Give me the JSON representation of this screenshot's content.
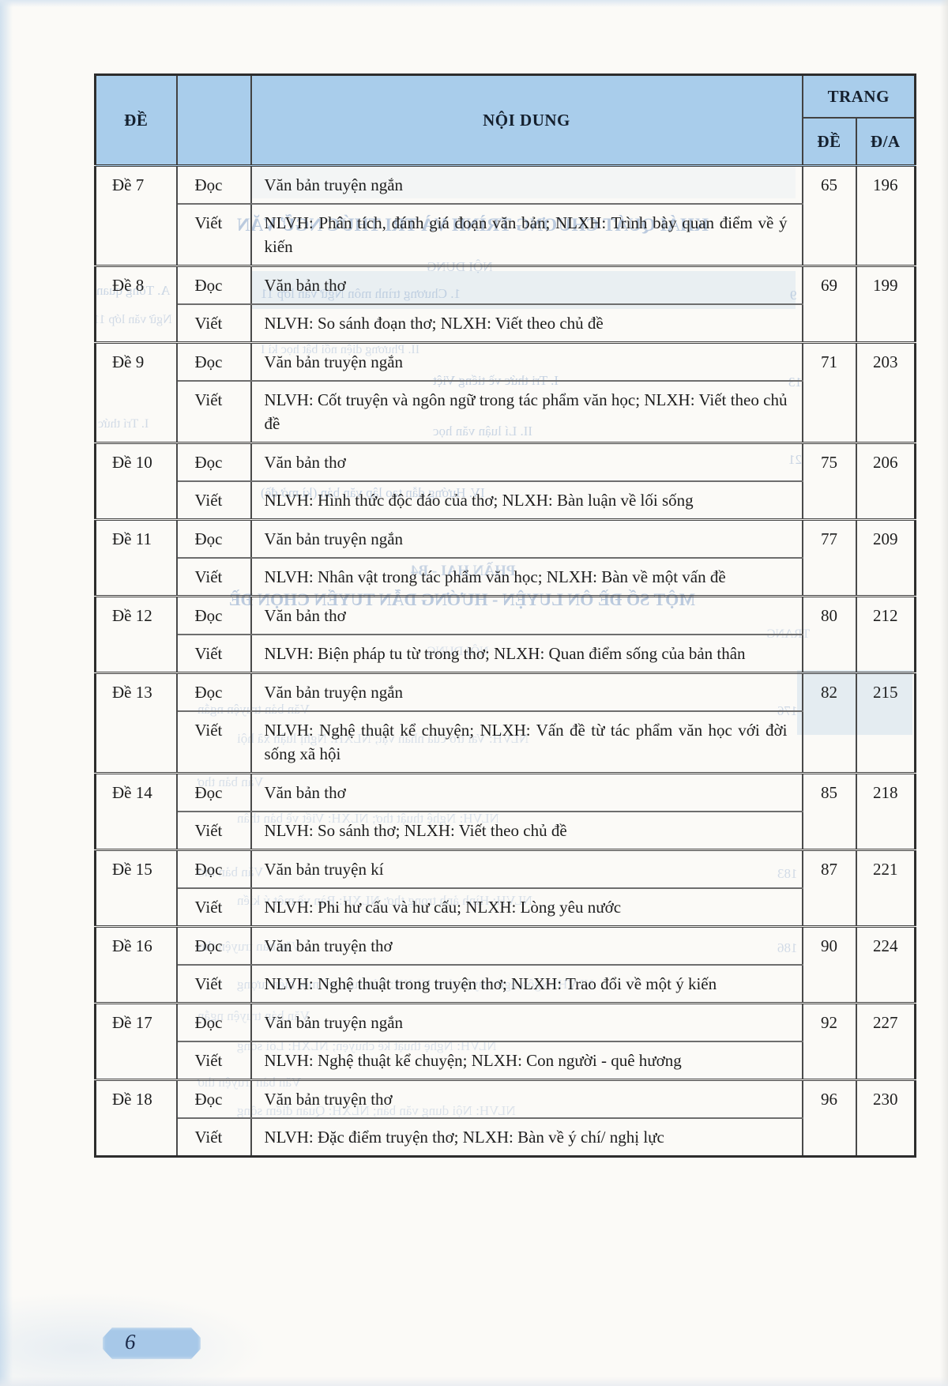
{
  "page": {
    "page_number": "6"
  },
  "colors": {
    "header_bg": "#a9cdeb",
    "badge_bg": "#a7c8e8",
    "table_line": "#424242",
    "bleed_ink": "#7d9cc6"
  },
  "table": {
    "header": {
      "col_de": "ĐỀ",
      "col_noidung": "NỘI DUNG",
      "col_trang": "TRANG",
      "sub_de": "ĐỀ",
      "sub_da": "Đ/A"
    },
    "row_labels": {
      "doc": "Đọc",
      "viet": "Viết"
    },
    "groups": [
      {
        "de": "Đề 7",
        "doc": "Văn bản truyện ngắn",
        "viet": "NLVH: Phân tích, đánh giá đoạn văn bản; NLXH: Trình bày quan điểm về ý kiến",
        "trang_de": "65",
        "trang_da": "196"
      },
      {
        "de": "Đề 8",
        "doc": "Văn bản thơ",
        "viet": "NLVH: So sánh đoạn thơ; NLXH: Viết theo chủ đề",
        "trang_de": "69",
        "trang_da": "199"
      },
      {
        "de": "Đề 9",
        "doc": "Văn bản truyện ngắn",
        "viet": "NLVH: Cốt truyện và ngôn ngữ trong tác phẩm văn học; NLXH: Viết theo chủ đề",
        "trang_de": "71",
        "trang_da": "203"
      },
      {
        "de": "Đề 10",
        "doc": "Văn bản thơ",
        "viet": "NLVH: Hình thức độc đáo của thơ; NLXH: Bàn luận về lối sống",
        "trang_de": "75",
        "trang_da": "206"
      },
      {
        "de": "Đề 11",
        "doc": "Văn bản truyện ngắn",
        "viet": "NLVH: Nhân vật trong tác phẩm văn học; NLXH: Bàn về một vấn đề",
        "trang_de": "77",
        "trang_da": "209"
      },
      {
        "de": "Đề 12",
        "doc": "Văn bản thơ",
        "viet": "NLVH: Biện pháp tu từ trong thơ; NLXH: Quan điểm sống của bản thân",
        "trang_de": "80",
        "trang_da": "212"
      },
      {
        "de": "Đề 13",
        "doc": "Văn bản truyện ngắn",
        "viet": "NLVH: Nghệ thuật kể chuyện; NLXH: Vấn đề từ tác phẩm văn học với đời sống xã hội",
        "trang_de": "82",
        "trang_da": "215"
      },
      {
        "de": "Đề 14",
        "doc": "Văn bản thơ",
        "viet": "NLVH: So sánh thơ; NLXH: Viết theo chủ đề",
        "trang_de": "85",
        "trang_da": "218"
      },
      {
        "de": "Đề 15",
        "doc": "Văn bản truyện kí",
        "viet": "NLVH: Phi hư cấu và hư cấu; NLXH: Lòng yêu nước",
        "trang_de": "87",
        "trang_da": "221"
      },
      {
        "de": "Đề 16",
        "doc": "Văn bản truyện thơ",
        "viet": "NLVH: Nghệ thuật trong truyện thơ; NLXH: Trao đổi về một ý kiến",
        "trang_de": "90",
        "trang_da": "224"
      },
      {
        "de": "Đề 17",
        "doc": "Văn bản truyện ngắn",
        "viet": "NLVH: Nghệ thuật kể chuyện; NLXH: Con người - quê hương",
        "trang_de": "92",
        "trang_da": "227"
      },
      {
        "de": "Đề 18",
        "doc": "Văn bản truyện thơ",
        "viet": "NLVH: Đặc điểm truyện thơ; NLXH: Bàn về ý chí/ nghị lực",
        "trang_de": "96",
        "trang_da": "230"
      }
    ]
  },
  "bleed": {
    "items": [
      "KHÁI QUÁT CHƯƠNG TRÌNH VÀ TRI THỨC NGỮ VĂN",
      "NỘI DUNG",
      "A. Tổng quan",
      "1. Chương trình môn Ngữ văn lớp 11",
      "9",
      "Ngữ văn lớp 11",
      "II. Phương diện nổi bật học kì I",
      "I. Tri thức về tiếng Việt",
      "13",
      "I. Trí thức",
      "II. Lí luận văn học",
      "21",
      "IV. Hướng dẫn tạo lập văn bản (kì mở đề)",
      "PHẦN HAI - B4",
      "MỘT SỐ ĐỀ ÔN LUYỆN - HƯỚNG DẪN TUYỂN CHỌN ĐỀ",
      "TRANG",
      "NỘI DUNG",
      "Văn bản truyện ngắn",
      "176",
      "NLVH: Vai trò của nhân vật; NLXH: Nghị luận xã hội",
      "Văn bản thơ",
      "NLVH: Nghệ thuật thơ; NLXH: Viết về bản thân",
      "Văn bản thơ",
      "183",
      "NLVH: Hình ảnh trong thơ; NLXH: Bàn về một ý kiến",
      "Văn bản truyện thơ",
      "186",
      "NLVH: Ngôn ngữ truyện thơ; NLXH: Bàn luận về một hiện tượng",
      "Văn bản truyện ngắn",
      "NLVH: Nghệ thuật kể chuyện; NLXH: Lối sống",
      "Văn bản truyện thơ",
      "NLVH: Nội dung văn bản; NLXH: Quan điểm sống"
    ]
  }
}
